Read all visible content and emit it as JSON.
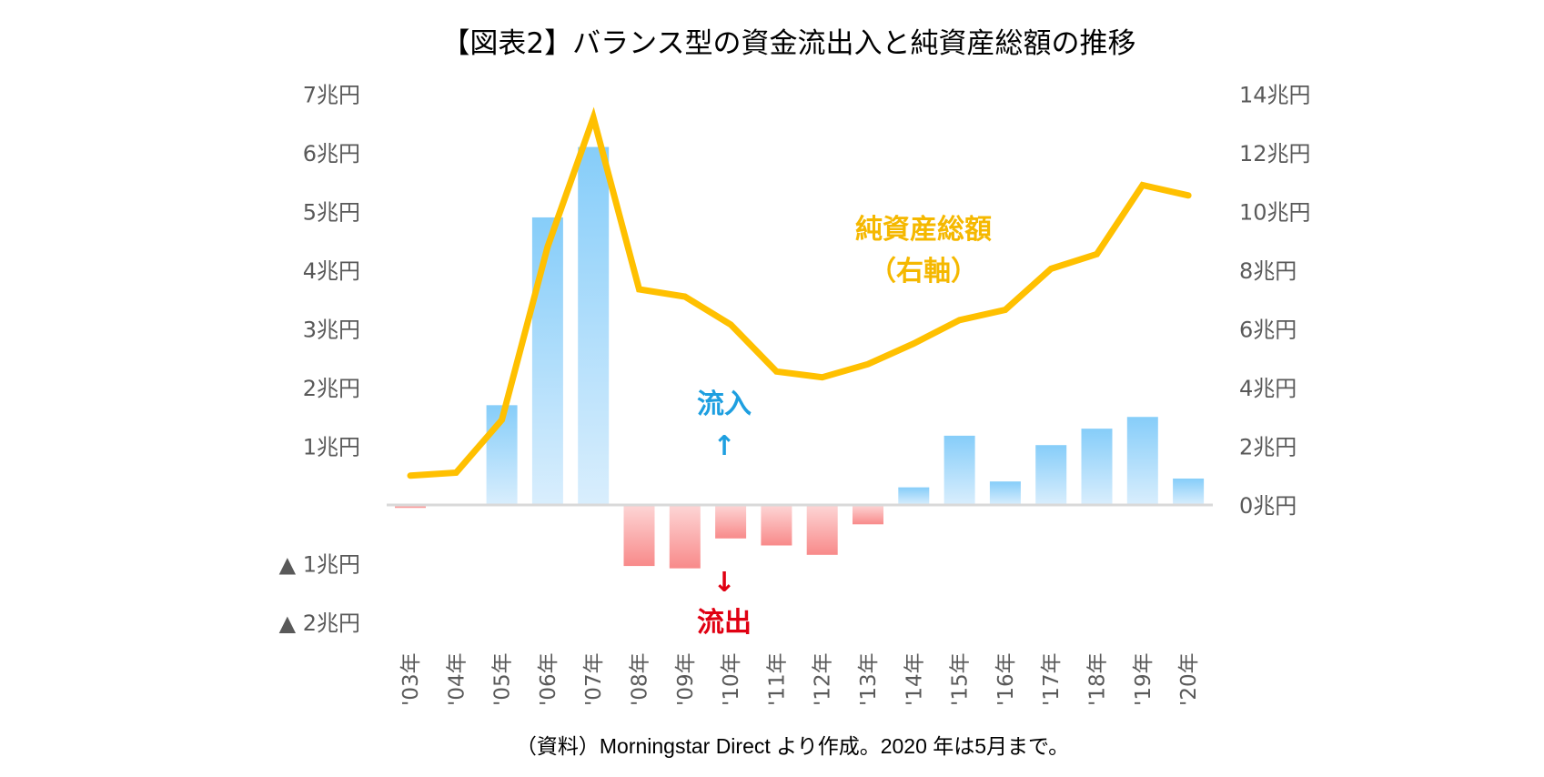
{
  "chart_data": {
    "type": "bar",
    "title": "【図表2】バランス型の資金流出入と純資産総額の推移",
    "categories": [
      "'03年",
      "'04年",
      "'05年",
      "'06年",
      "'07年",
      "'08年",
      "'09年",
      "'10年",
      "'11年",
      "'12年",
      "'13年",
      "'14年",
      "'15年",
      "'16年",
      "'17年",
      "'18年",
      "'19年",
      "'20年"
    ],
    "series": [
      {
        "name": "資金流出入",
        "type": "bar",
        "axis": "left",
        "unit": "兆円",
        "values": [
          -0.05,
          0.0,
          1.7,
          4.9,
          6.1,
          -1.04,
          -1.08,
          -0.57,
          -0.69,
          -0.85,
          -0.33,
          0.3,
          1.18,
          0.4,
          1.02,
          1.3,
          1.5,
          0.45
        ],
        "positive_color": "#86cdf9",
        "negative_color": "#f88a8a"
      },
      {
        "name": "純資産総額",
        "type": "line",
        "axis": "right",
        "unit": "兆円",
        "values": [
          1.0,
          1.1,
          2.9,
          8.8,
          13.2,
          7.35,
          7.1,
          6.15,
          4.55,
          4.35,
          4.8,
          5.5,
          6.3,
          6.65,
          8.05,
          8.55,
          10.9,
          10.55
        ],
        "color": "#ffc000"
      }
    ],
    "left_axis": {
      "range": [
        -2,
        7
      ],
      "ticks": [
        {
          "value": 7,
          "label": "7兆円"
        },
        {
          "value": 6,
          "label": "6兆円"
        },
        {
          "value": 5,
          "label": "5兆円"
        },
        {
          "value": 4,
          "label": "4兆円"
        },
        {
          "value": 3,
          "label": "3兆円"
        },
        {
          "value": 2,
          "label": "2兆円"
        },
        {
          "value": 1,
          "label": "1兆円"
        },
        {
          "value": -1,
          "label": "▲ 1兆円"
        },
        {
          "value": -2,
          "label": "▲ 2兆円"
        }
      ]
    },
    "right_axis": {
      "range": [
        -4,
        14
      ],
      "ticks": [
        {
          "value": 14,
          "label": "14兆円"
        },
        {
          "value": 12,
          "label": "12兆円"
        },
        {
          "value": 10,
          "label": "10兆円"
        },
        {
          "value": 8,
          "label": "8兆円"
        },
        {
          "value": 6,
          "label": "6兆円"
        },
        {
          "value": 4,
          "label": "4兆円"
        },
        {
          "value": 2,
          "label": "2兆円"
        },
        {
          "value": 0,
          "label": "0兆円"
        }
      ]
    },
    "annotations": {
      "line_label": [
        "純資産総額",
        "（右軸）"
      ],
      "inflow_label": "流入",
      "inflow_arrow": "↑",
      "outflow_label": "流出",
      "outflow_arrow": "↓"
    },
    "grid": false,
    "legend": "none",
    "xlabel": "",
    "ylabel": "",
    "note": "（資料）Morningstar Direct より作成。2020 年は5月まで。"
  }
}
